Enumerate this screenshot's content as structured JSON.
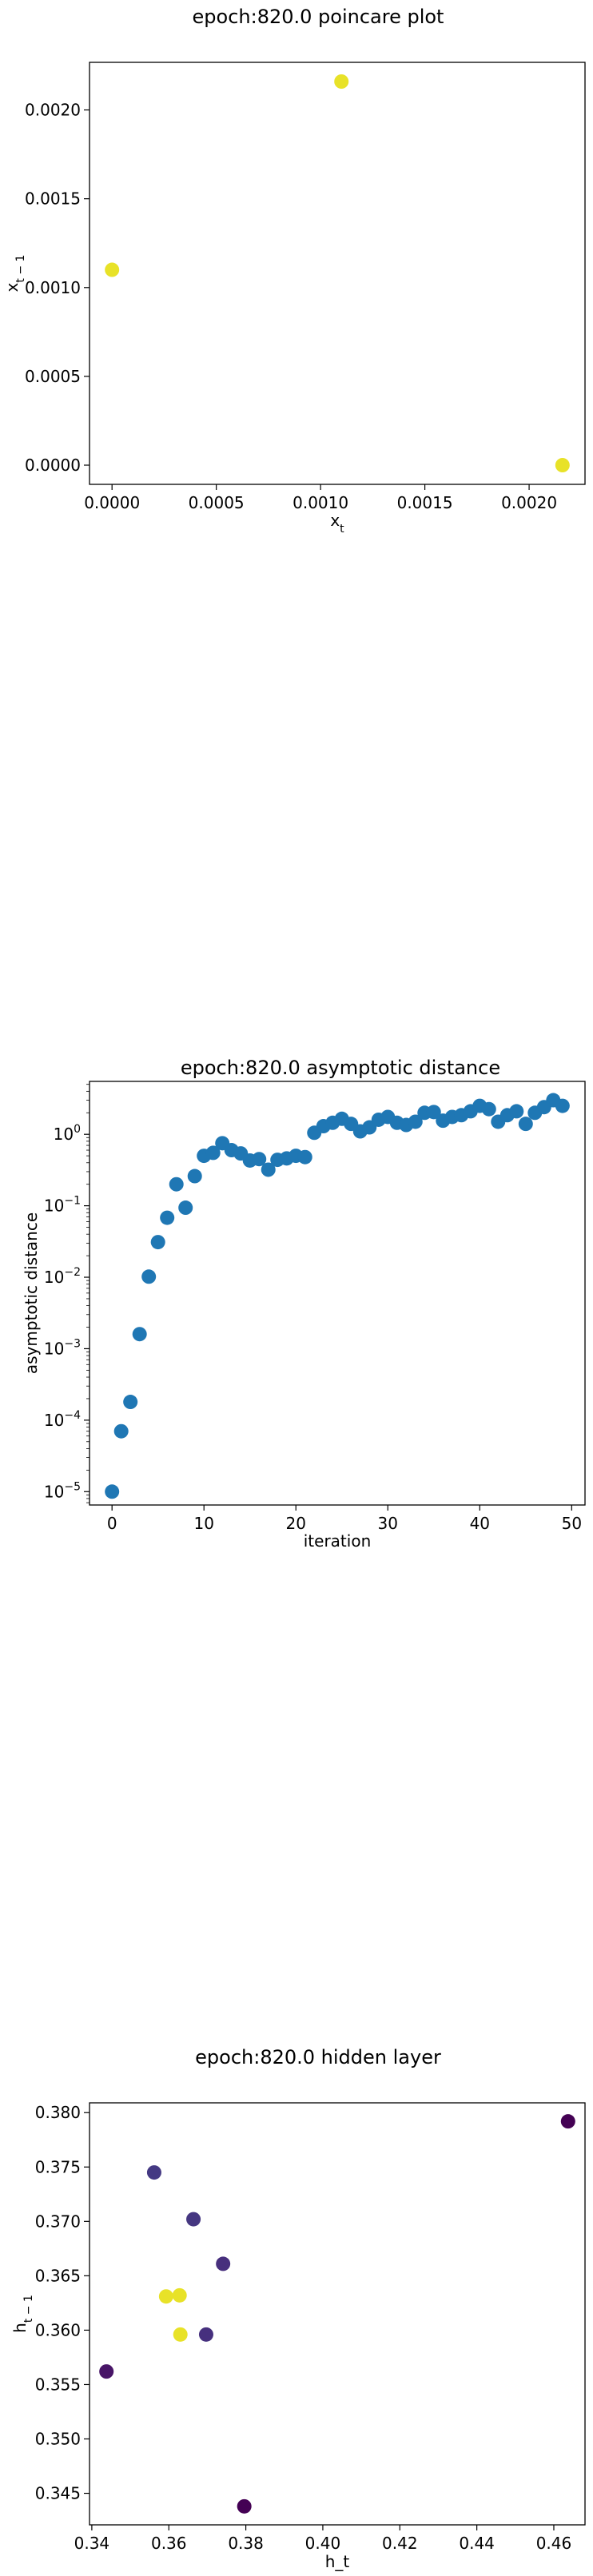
{
  "chart_data": [
    {
      "type": "scatter",
      "title": "epoch:820.0 poincare plot",
      "xlabel": "x_t",
      "ylabel": "x_{t-1}",
      "xlim": [
        -0.000108,
        0.002268
      ],
      "ylim": [
        -0.000108,
        0.002268
      ],
      "xticks": [
        0.0,
        0.0005,
        0.001,
        0.0015,
        0.002
      ],
      "xtick_labels": [
        "0.0000",
        "0.0005",
        "0.0010",
        "0.0015",
        "0.0020"
      ],
      "yticks": [
        0.0,
        0.0005,
        0.001,
        0.0015,
        0.002
      ],
      "ytick_labels": [
        "0.0000",
        "0.0005",
        "0.0010",
        "0.0015",
        "0.0020"
      ],
      "points": [
        {
          "x": 0.0,
          "y": 0.0011,
          "color": "#e8e228"
        },
        {
          "x": 0.0011,
          "y": 0.00216,
          "color": "#e8e228"
        },
        {
          "x": 0.00216,
          "y": 0.0,
          "color": "#e8e228"
        }
      ]
    },
    {
      "type": "scatter",
      "title": "epoch:820.0 asymptotic distance",
      "xlabel": "iteration",
      "ylabel": "asymptotic distance",
      "yscale": "log",
      "xlim": [
        -2.45,
        51.45
      ],
      "ylim": [
        6.5e-06,
        5.5
      ],
      "xticks": [
        0,
        10,
        20,
        30,
        40,
        50
      ],
      "xtick_labels": [
        "0",
        "10",
        "20",
        "30",
        "40",
        "50"
      ],
      "yticks": [
        1e-05,
        0.0001,
        0.001,
        0.01,
        0.1,
        1
      ],
      "color": "#1f77b4",
      "x": [
        0,
        1,
        2,
        3,
        4,
        5,
        6,
        7,
        8,
        9,
        10,
        11,
        12,
        13,
        14,
        15,
        16,
        17,
        18,
        19,
        20,
        21,
        22,
        23,
        24,
        25,
        26,
        27,
        28,
        29,
        30,
        31,
        32,
        33,
        34,
        35,
        36,
        37,
        38,
        39,
        40,
        41,
        42,
        43,
        44,
        45,
        46,
        47,
        48,
        49
      ],
      "y": [
        1e-05,
        7e-05,
        0.00018,
        0.0016,
        0.0102,
        0.031,
        0.068,
        0.2,
        0.094,
        0.26,
        0.5,
        0.55,
        0.75,
        0.6,
        0.54,
        0.43,
        0.45,
        0.32,
        0.44,
        0.46,
        0.5,
        0.48,
        1.05,
        1.3,
        1.45,
        1.65,
        1.4,
        1.1,
        1.25,
        1.6,
        1.75,
        1.45,
        1.35,
        1.5,
        2.0,
        2.05,
        1.55,
        1.75,
        1.85,
        2.1,
        2.5,
        2.25,
        1.5,
        1.85,
        2.1,
        1.4,
        2.0,
        2.4,
        3.0,
        2.5
      ]
    },
    {
      "type": "scatter",
      "title": "epoch:820.0 hidden layer",
      "xlabel": "h_t",
      "ylabel": "h_{t-1}",
      "xlim": [
        0.3394,
        0.4681
      ],
      "ylim": [
        0.3421,
        0.3809
      ],
      "xticks": [
        0.34,
        0.36,
        0.38,
        0.4,
        0.42,
        0.44,
        0.46
      ],
      "xtick_labels": [
        "0.34",
        "0.36",
        "0.38",
        "0.40",
        "0.42",
        "0.44",
        "0.46"
      ],
      "yticks": [
        0.345,
        0.35,
        0.355,
        0.36,
        0.365,
        0.37,
        0.375,
        0.38
      ],
      "ytick_labels": [
        "0.345",
        "0.350",
        "0.355",
        "0.360",
        "0.365",
        "0.370",
        "0.375",
        "0.380"
      ],
      "points": [
        {
          "x": 0.3438,
          "y": 0.3562,
          "color": "#481567"
        },
        {
          "x": 0.3562,
          "y": 0.3745,
          "color": "#443983"
        },
        {
          "x": 0.3593,
          "y": 0.3631,
          "color": "#e8e228"
        },
        {
          "x": 0.3628,
          "y": 0.3632,
          "color": "#e8e228"
        },
        {
          "x": 0.363,
          "y": 0.3596,
          "color": "#e8e228"
        },
        {
          "x": 0.3664,
          "y": 0.3702,
          "color": "#453781"
        },
        {
          "x": 0.3697,
          "y": 0.3596,
          "color": "#46307e"
        },
        {
          "x": 0.3741,
          "y": 0.3661,
          "color": "#472f7d"
        },
        {
          "x": 0.3796,
          "y": 0.3438,
          "color": "#440154"
        },
        {
          "x": 0.4637,
          "y": 0.3792,
          "color": "#440154"
        }
      ]
    }
  ]
}
